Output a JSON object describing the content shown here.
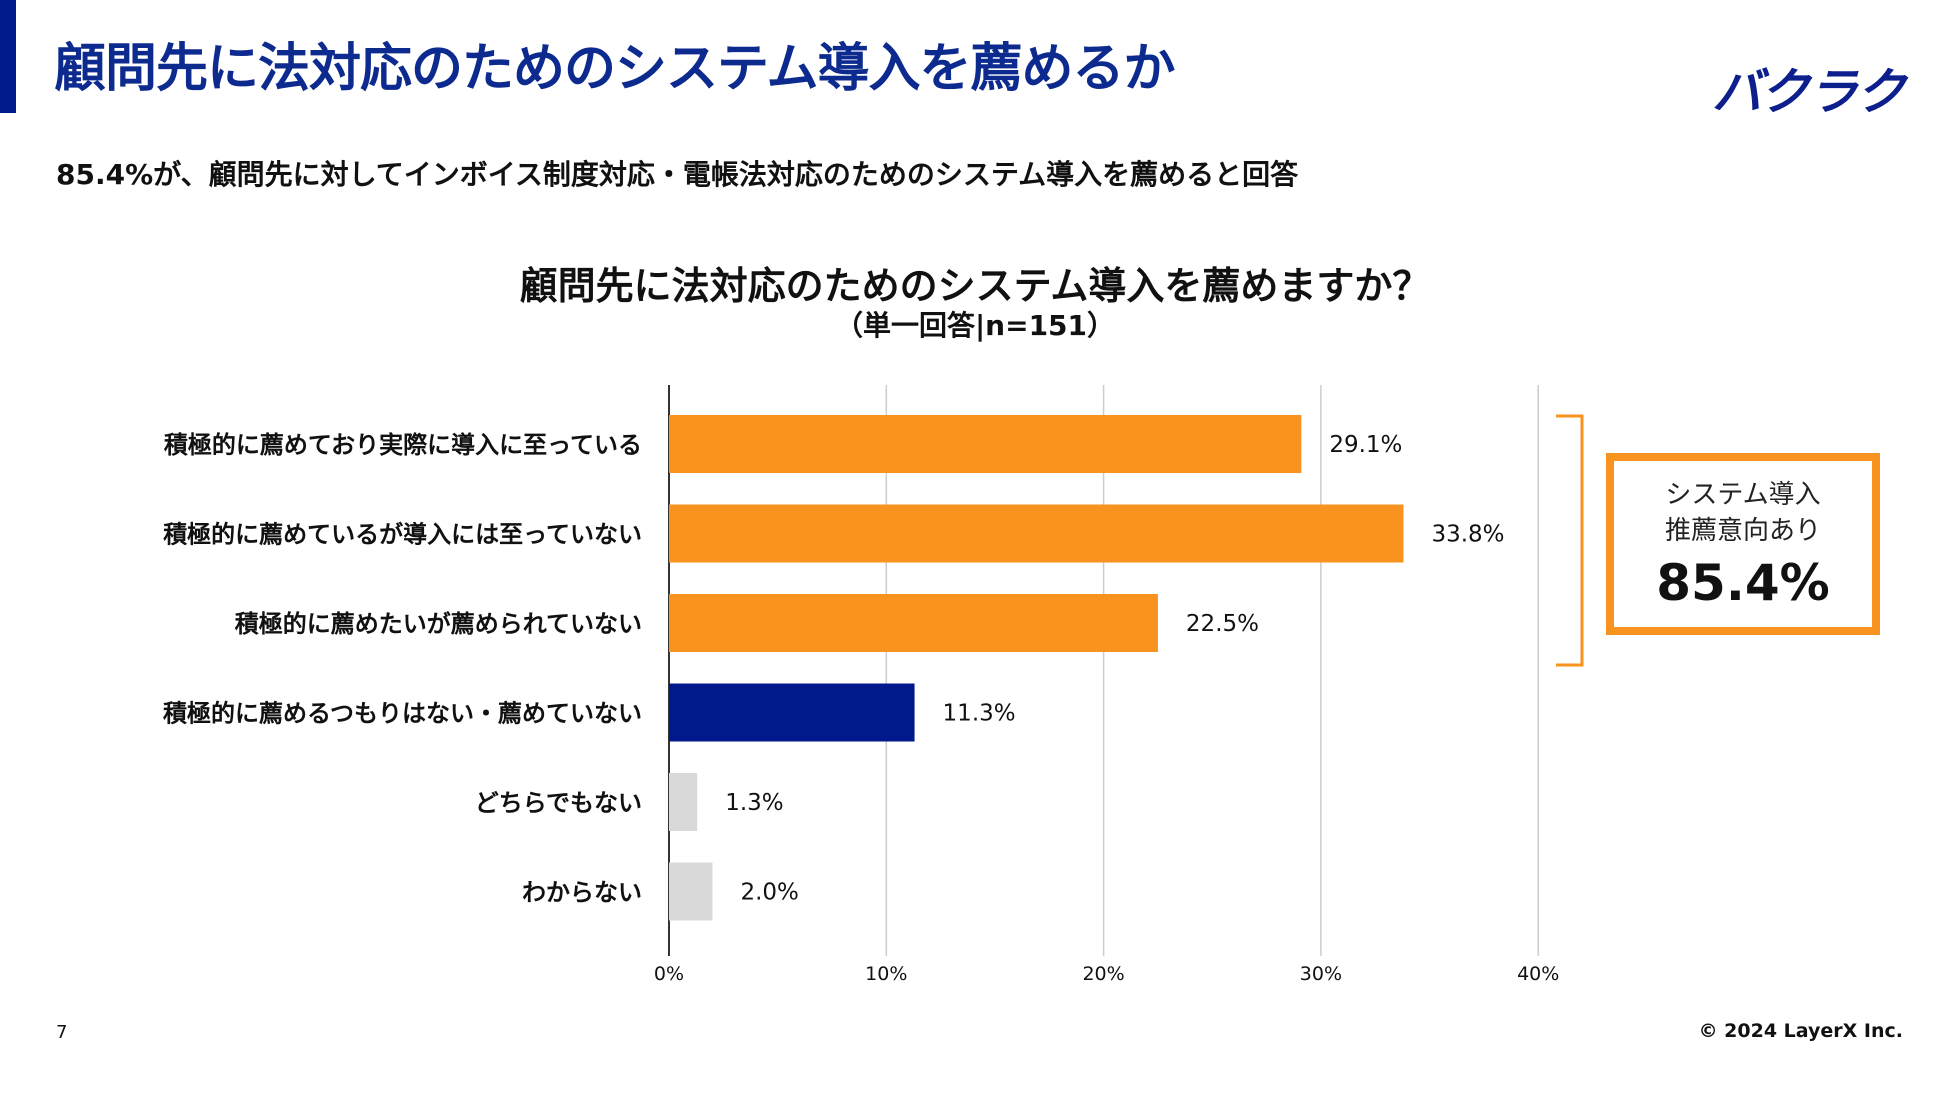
{
  "slide": {
    "title": "顧問先に法対応のためのシステム導入を薦めるか",
    "logo_text": "バクラク",
    "subtitle": "85.4%が、顧問先に対してインボイス制度対応・電帳法対応のためのシステム導入を薦めると回答",
    "page_number": "7",
    "copyright": "© 2024 LayerX Inc."
  },
  "summary": {
    "line1": "システム導入",
    "line2": "推薦意向あり",
    "value": "85.4%"
  },
  "colors": {
    "accent": "#001a8c",
    "orange": "#f7931e",
    "navy": "#001a8c",
    "gray": "#d9d9d9",
    "grid": "#cccccc"
  },
  "chart_data": {
    "type": "bar",
    "orientation": "horizontal",
    "title": "顧問先に法対応のためのシステム導入を薦めますか？",
    "subtitle": "（単一回答|n=151）",
    "categories": [
      "積極的に薦めており実際に導入に至っている",
      "積極的に薦めているが導入には至っていない",
      "積極的に薦めたいが薦められていない",
      "積極的に薦めるつもりはない・薦めていない",
      "どちらでもない",
      "わからない"
    ],
    "values": [
      29.1,
      33.8,
      22.5,
      11.3,
      1.3,
      2.0
    ],
    "value_labels": [
      "29.1%",
      "33.8%",
      "22.5%",
      "11.3%",
      "1.3%",
      "2.0%"
    ],
    "bar_colors": [
      "#f7931e",
      "#f7931e",
      "#f7931e",
      "#001a8c",
      "#d9d9d9",
      "#d9d9d9"
    ],
    "xlim": [
      0,
      40
    ],
    "xticks": [
      0,
      10,
      20,
      30,
      40
    ],
    "xtick_labels": [
      "0%",
      "10%",
      "20%",
      "30%",
      "40%"
    ],
    "grid": true,
    "xlabel": "",
    "ylabel": ""
  }
}
